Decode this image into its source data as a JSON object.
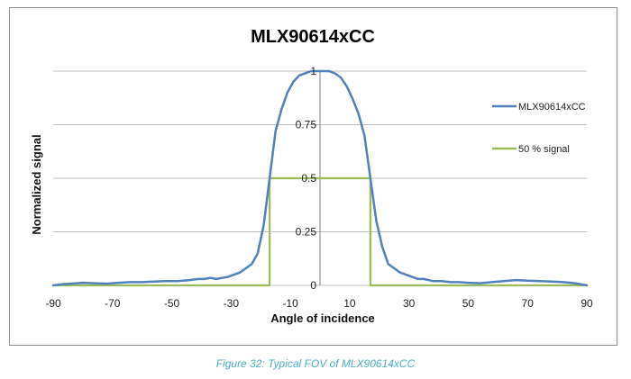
{
  "caption": "Figure 32: Typical FOV of MLX90614xCC",
  "colors": {
    "series_main": "#4f81bd",
    "series_threshold": "#9bbb59",
    "grid": "#bfbfbf",
    "caption": "#4bacc6"
  },
  "chart_data": {
    "type": "line",
    "title": "MLX90614xCC",
    "xlabel": "Angle of incidence",
    "ylabel": "Normalized signal",
    "xlim": [
      -90,
      90
    ],
    "ylim": [
      0,
      1
    ],
    "x_ticks": [
      "-90",
      "-70",
      "-50",
      "-30",
      "-10",
      "10",
      "30",
      "50",
      "70",
      "90"
    ],
    "y_ticks": [
      "0",
      "0.25",
      "0.5",
      "0.75",
      "1"
    ],
    "grid": "horizontal",
    "legend_position": "right",
    "series": [
      {
        "name": "MLX90614xCC",
        "color": "#4f81bd",
        "x": [
          -90,
          -87,
          -84,
          -80,
          -76,
          -72,
          -68,
          -64,
          -60,
          -56,
          -52,
          -48,
          -44,
          -41,
          -39,
          -37,
          -35,
          -33,
          -31,
          -29,
          -27,
          -25,
          -23,
          -21,
          -19,
          -17,
          -15,
          -13,
          -11,
          -9,
          -7,
          -5,
          -3,
          -1,
          1,
          3,
          5,
          7,
          9,
          11,
          13,
          15,
          17,
          19,
          21,
          23,
          25,
          27,
          29,
          31,
          33,
          35,
          38,
          41,
          44,
          47,
          50,
          54,
          58,
          62,
          66,
          70,
          74,
          78,
          82,
          86,
          90
        ],
        "y": [
          0.0,
          0.005,
          0.008,
          0.012,
          0.01,
          0.008,
          0.012,
          0.015,
          0.015,
          0.018,
          0.02,
          0.02,
          0.025,
          0.03,
          0.03,
          0.035,
          0.03,
          0.035,
          0.04,
          0.05,
          0.06,
          0.08,
          0.1,
          0.15,
          0.28,
          0.5,
          0.72,
          0.82,
          0.9,
          0.95,
          0.98,
          0.99,
          1.0,
          1.0,
          1.0,
          1.0,
          0.99,
          0.97,
          0.93,
          0.87,
          0.8,
          0.7,
          0.5,
          0.3,
          0.18,
          0.1,
          0.08,
          0.06,
          0.05,
          0.04,
          0.03,
          0.03,
          0.02,
          0.02,
          0.015,
          0.015,
          0.012,
          0.01,
          0.015,
          0.02,
          0.025,
          0.022,
          0.02,
          0.018,
          0.015,
          0.01,
          0.0
        ]
      },
      {
        "name": "50 % signal",
        "color": "#9bbb59",
        "x": [
          -90,
          -17,
          -17,
          17,
          17,
          90
        ],
        "y": [
          0,
          0,
          0.5,
          0.5,
          0,
          0
        ]
      }
    ]
  }
}
